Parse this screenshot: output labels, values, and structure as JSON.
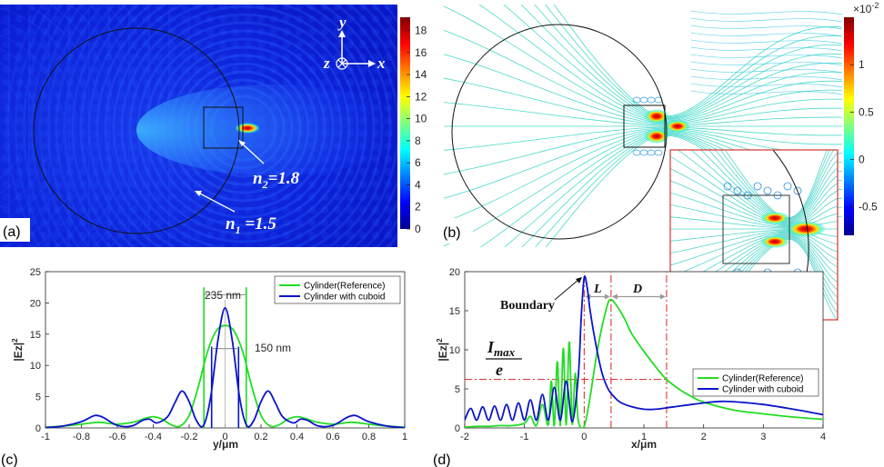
{
  "colors": {
    "reference": "#22dd22",
    "cuboid": "#0a14c8",
    "guide_red": "#dd2222",
    "inset_border": "#d33333"
  },
  "panels": {
    "a": {
      "label": "(a)",
      "n1_label": "n",
      "n1_sub": "1",
      "n1_value": " =1.5",
      "n2_label": "n",
      "n2_sub": "2",
      "n2_value": "=1.8",
      "axis_y": "y",
      "axis_x": "x",
      "axis_z": "z",
      "colorbar_ticks": [
        "18",
        "16",
        "14",
        "12",
        "10",
        "8",
        "6",
        "4",
        "2",
        "0"
      ]
    },
    "b": {
      "label": "(b)",
      "colorbar_exponent": "×10",
      "colorbar_exponent_power": "-2",
      "colorbar_ticks": [
        "1",
        "0.5",
        "0",
        "-0.5"
      ]
    },
    "c": {
      "label": "(c)",
      "width_label_1": "235 nm",
      "width_label_2": "150 nm"
    },
    "d": {
      "label": "(d)",
      "boundary_label": "Boundary",
      "L_label": "L",
      "D_label": "D",
      "imax_label": "I",
      "imax_sub": "max",
      "e_label": "e"
    }
  },
  "chart_data": [
    {
      "panel": "c",
      "type": "line",
      "xlabel": "y/μm",
      "ylabel": "|Ez|",
      "ylabel_power": "2",
      "xlim": [
        -1,
        1
      ],
      "ylim": [
        0,
        25
      ],
      "xticks": [
        -1,
        -0.8,
        -0.6,
        -0.4,
        -0.2,
        0,
        0.2,
        0.4,
        0.6,
        0.8,
        1
      ],
      "xtick_labels": [
        "-1",
        "-0.8",
        "-0.6",
        "-0.4",
        "-0.2",
        "0",
        "0.2",
        "0.4",
        "0.6",
        "0.8",
        "1"
      ],
      "yticks": [
        0,
        5,
        10,
        15,
        20,
        25
      ],
      "legend_position": "top-right",
      "series": [
        {
          "name": "Cylinder(Reference)",
          "x": [
            -1,
            -0.9,
            -0.8,
            -0.7,
            -0.6,
            -0.5,
            -0.45,
            -0.4,
            -0.35,
            -0.3,
            -0.25,
            -0.2,
            -0.15,
            -0.1,
            -0.05,
            0,
            0.05,
            0.1,
            0.15,
            0.2,
            0.25,
            0.3,
            0.35,
            0.4,
            0.45,
            0.5,
            0.6,
            0.7,
            0.8,
            0.9,
            1
          ],
          "y": [
            0.1,
            0.3,
            0.6,
            0.9,
            0.6,
            1.0,
            1.5,
            1.8,
            1.4,
            0.5,
            0.3,
            2.0,
            6.5,
            12.0,
            15.5,
            16.4,
            15.5,
            12.0,
            6.5,
            2.0,
            0.3,
            0.5,
            1.4,
            1.8,
            1.5,
            1.0,
            0.6,
            0.9,
            0.6,
            0.3,
            0.1
          ]
        },
        {
          "name": "Cylinder with cuboid",
          "x": [
            -1,
            -0.9,
            -0.8,
            -0.75,
            -0.72,
            -0.68,
            -0.6,
            -0.52,
            -0.46,
            -0.42,
            -0.38,
            -0.32,
            -0.28,
            -0.24,
            -0.2,
            -0.16,
            -0.12,
            -0.08,
            -0.04,
            0,
            0.04,
            0.08,
            0.12,
            0.16,
            0.2,
            0.24,
            0.28,
            0.32,
            0.38,
            0.42,
            0.46,
            0.52,
            0.6,
            0.68,
            0.72,
            0.75,
            0.8,
            0.9,
            1
          ],
          "y": [
            0.05,
            0.3,
            1.0,
            1.7,
            2.0,
            1.7,
            0.4,
            0.3,
            1.2,
            1.4,
            0.8,
            1.8,
            4.0,
            5.9,
            4.2,
            1.2,
            0.4,
            5.0,
            14.0,
            19.2,
            14.0,
            5.0,
            0.4,
            1.2,
            4.2,
            5.9,
            4.0,
            1.8,
            0.8,
            1.4,
            1.2,
            0.3,
            0.4,
            1.7,
            2.0,
            1.7,
            1.0,
            0.3,
            0.05
          ]
        }
      ]
    },
    {
      "panel": "d",
      "type": "line",
      "xlabel": "x/μm",
      "ylabel": "|Ez|",
      "ylabel_power": "2",
      "xlim": [
        -2,
        4
      ],
      "ylim": [
        0,
        20
      ],
      "xticks": [
        -2,
        -1,
        0,
        1,
        2,
        3,
        4
      ],
      "xtick_labels": [
        "-2",
        "-1",
        "0",
        "1",
        "2",
        "3",
        "4"
      ],
      "yticks": [
        0,
        5,
        10,
        15,
        20
      ],
      "legend_position": "bottom-right",
      "guides": {
        "imax_over_e": 6.2,
        "boundary_x": 0,
        "peak_ref_x": 0.45,
        "end_ref_x": 1.38
      },
      "series": [
        {
          "name": "Cylinder(Reference)",
          "x": [
            -2,
            -1.8,
            -1.6,
            -1.4,
            -1.2,
            -1.0,
            -0.9,
            -0.8,
            -0.7,
            -0.6,
            -0.55,
            -0.5,
            -0.45,
            -0.4,
            -0.35,
            -0.3,
            -0.25,
            -0.2,
            -0.15,
            -0.1,
            0,
            0.1,
            0.2,
            0.3,
            0.4,
            0.45,
            0.5,
            0.6,
            0.7,
            0.8,
            1.0,
            1.2,
            1.38,
            1.6,
            1.8,
            2.0,
            2.5,
            3.0,
            3.5,
            4.0
          ],
          "y": [
            0.1,
            0.2,
            0.2,
            0.3,
            0.3,
            0.6,
            1.5,
            0.3,
            3.0,
            0.4,
            6.0,
            0.3,
            8.5,
            0.3,
            10.2,
            0.4,
            11.0,
            0.5,
            7.0,
            1.0,
            0.2,
            4.0,
            9.0,
            13.0,
            16.0,
            16.4,
            16.1,
            15.0,
            13.6,
            12.0,
            9.8,
            7.8,
            6.2,
            4.9,
            4.0,
            3.3,
            2.3,
            1.8,
            1.4,
            1.1
          ]
        },
        {
          "name": "Cylinder with cuboid",
          "x": [
            -2,
            -1.9,
            -1.8,
            -1.7,
            -1.6,
            -1.5,
            -1.4,
            -1.3,
            -1.2,
            -1.1,
            -1.0,
            -0.9,
            -0.8,
            -0.7,
            -0.6,
            -0.5,
            -0.4,
            -0.3,
            -0.2,
            -0.1,
            -0.05,
            0,
            0.05,
            0.1,
            0.2,
            0.3,
            0.4,
            0.5,
            0.6,
            0.8,
            1.0,
            1.2,
            1.5,
            2.0,
            2.3,
            2.6,
            3.0,
            3.5,
            4.0
          ],
          "y": [
            1.0,
            2.5,
            1.0,
            2.7,
            1.0,
            2.8,
            1.0,
            3.0,
            1.0,
            3.2,
            1.0,
            3.6,
            1.0,
            4.3,
            1.0,
            5.2,
            1.0,
            6.0,
            0.8,
            6.5,
            14.0,
            19.2,
            18.0,
            15.0,
            10.5,
            7.0,
            5.0,
            4.0,
            3.3,
            2.7,
            2.4,
            2.4,
            2.7,
            3.2,
            3.4,
            3.3,
            3.0,
            2.4,
            1.7
          ]
        }
      ]
    }
  ]
}
